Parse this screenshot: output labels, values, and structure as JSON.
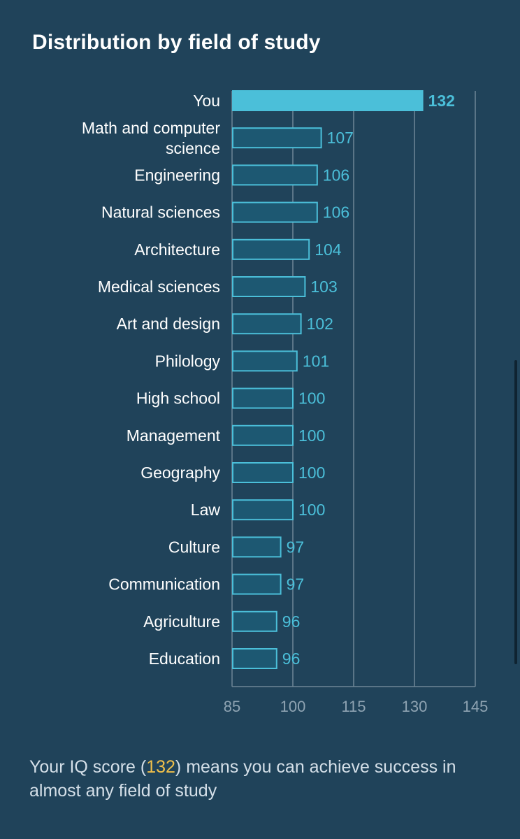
{
  "title": "Distribution by field of study",
  "chart_data": {
    "type": "bar",
    "orientation": "horizontal",
    "categories": [
      "You",
      "Math and computer science",
      "Engineering",
      "Natural sciences",
      "Architecture",
      "Medical sciences",
      "Art and design",
      "Philology",
      "High school",
      "Management",
      "Geography",
      "Law",
      "Culture",
      "Communication",
      "Agriculture",
      "Education"
    ],
    "values": [
      132,
      107,
      106,
      106,
      104,
      103,
      102,
      101,
      100,
      100,
      100,
      100,
      97,
      97,
      96,
      96
    ],
    "highlight_index": 0,
    "xlim": [
      85,
      145
    ],
    "xticks": [
      85,
      100,
      115,
      130,
      145
    ],
    "grid": true,
    "colors": {
      "highlight_fill": "#4bbfd9",
      "bar_fill": "#1d5872",
      "bar_stroke": "#4bbfd9",
      "value_label": "#4bbfd9",
      "grid": "#6e8696",
      "tick_label": "#8ea3b2"
    }
  },
  "footer": {
    "before": "Your IQ score (",
    "score": "132",
    "after": ") means you can achieve success in almost any field of study"
  }
}
